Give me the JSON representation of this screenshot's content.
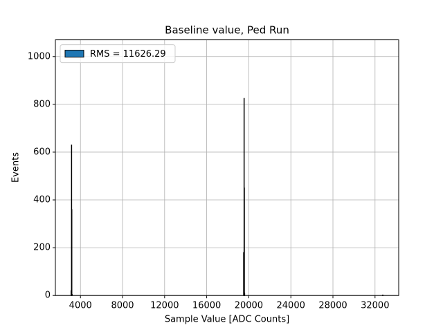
{
  "chart_data": {
    "type": "histogram",
    "title": "Baseline value, Ped Run",
    "x_label": "Sample Value [ADC Counts]",
    "y_label": "Events",
    "bins": [
      3100,
      3140,
      3160,
      3180,
      3220,
      19500,
      19540,
      19560,
      19580,
      19620,
      32700,
      32767
    ],
    "series": [
      {
        "name": "RMS = 11626.29",
        "color": "#1f77b4",
        "edgecolor": "#000000",
        "values": [
          20,
          630,
          360,
          5,
          0,
          180,
          825,
          450,
          10,
          0,
          2
        ]
      }
    ],
    "xlim": [
      1617,
      34250
    ],
    "ylim": [
      0,
      1070
    ],
    "xticks": [
      4000,
      8000,
      12000,
      16000,
      20000,
      24000,
      28000,
      32000
    ],
    "yticks": [
      0,
      200,
      400,
      600,
      800,
      1000
    ],
    "grid": true,
    "legend": "upper left"
  }
}
